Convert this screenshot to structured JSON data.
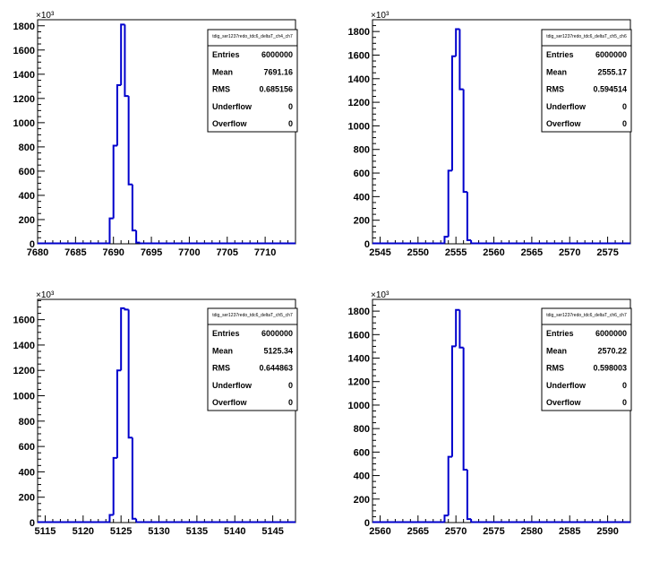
{
  "chart_data": [
    {
      "type": "histogram",
      "name": "tdig_ser1237redo_tdc6_deltaT_ch4_ch7",
      "stats": {
        "entries": "6000000",
        "mean": "7691.16",
        "rms": "0.685156",
        "underflow": "0",
        "overflow": "0"
      },
      "xlim": [
        7680,
        7714
      ],
      "ylim": [
        0,
        1850
      ],
      "x_ticks": [
        7680,
        7685,
        7690,
        7695,
        7700,
        7705,
        7710
      ],
      "y_ticks": [
        0,
        200,
        400,
        600,
        800,
        1000,
        1200,
        1400,
        1600,
        1800
      ],
      "y_multiplier": "×10³",
      "bin_width": 0.5,
      "bins": [
        {
          "x0": 7689.5,
          "x1": 7690.0,
          "y": 210
        },
        {
          "x0": 7690.0,
          "x1": 7690.5,
          "y": 810
        },
        {
          "x0": 7690.5,
          "x1": 7691.0,
          "y": 1310
        },
        {
          "x0": 7691.0,
          "x1": 7691.5,
          "y": 1810
        },
        {
          "x0": 7691.5,
          "x1": 7692.0,
          "y": 1220
        },
        {
          "x0": 7692.0,
          "x1": 7692.5,
          "y": 490
        },
        {
          "x0": 7692.5,
          "x1": 7693.0,
          "y": 110
        },
        {
          "x0": 7693.0,
          "x1": 7693.5,
          "y": 10
        }
      ]
    },
    {
      "type": "histogram",
      "name": "tdig_ser1237redo_tdc6_deltaT_ch5_ch6",
      "stats": {
        "entries": "6000000",
        "mean": "2555.17",
        "rms": "0.594514",
        "underflow": "0",
        "overflow": "0"
      },
      "xlim": [
        2544,
        2578
      ],
      "ylim": [
        0,
        1900
      ],
      "x_ticks": [
        2545,
        2550,
        2555,
        2560,
        2565,
        2570,
        2575
      ],
      "y_ticks": [
        0,
        200,
        400,
        600,
        800,
        1000,
        1200,
        1400,
        1600,
        1800
      ],
      "y_multiplier": "×10³",
      "bin_width": 0.5,
      "bins": [
        {
          "x0": 2553.5,
          "x1": 2554.0,
          "y": 60
        },
        {
          "x0": 2554.0,
          "x1": 2554.5,
          "y": 620
        },
        {
          "x0": 2554.5,
          "x1": 2555.0,
          "y": 1590
        },
        {
          "x0": 2555.0,
          "x1": 2555.5,
          "y": 1820
        },
        {
          "x0": 2555.5,
          "x1": 2556.0,
          "y": 1310
        },
        {
          "x0": 2556.0,
          "x1": 2556.5,
          "y": 440
        },
        {
          "x0": 2556.5,
          "x1": 2557.0,
          "y": 30
        }
      ]
    },
    {
      "type": "histogram",
      "name": "tdig_ser1237redo_tdc6_deltaT_ch5_ch7",
      "stats": {
        "entries": "6000000",
        "mean": "5125.34",
        "rms": "0.644863",
        "underflow": "0",
        "overflow": "0"
      },
      "xlim": [
        5114,
        5148
      ],
      "ylim": [
        0,
        1760
      ],
      "x_ticks": [
        5115,
        5120,
        5125,
        5130,
        5135,
        5140,
        5145
      ],
      "y_ticks": [
        0,
        200,
        400,
        600,
        800,
        1000,
        1200,
        1400,
        1600
      ],
      "y_multiplier": "×10³",
      "bin_width": 0.5,
      "bins": [
        {
          "x0": 5123.5,
          "x1": 5124.0,
          "y": 60
        },
        {
          "x0": 5124.0,
          "x1": 5124.5,
          "y": 510
        },
        {
          "x0": 5124.5,
          "x1": 5125.0,
          "y": 1200
        },
        {
          "x0": 5125.0,
          "x1": 5125.5,
          "y": 1690
        },
        {
          "x0": 5125.5,
          "x1": 5126.0,
          "y": 1680
        },
        {
          "x0": 5126.0,
          "x1": 5126.5,
          "y": 670
        },
        {
          "x0": 5126.5,
          "x1": 5127.0,
          "y": 30
        }
      ]
    },
    {
      "type": "histogram",
      "name": "tdig_ser1237redo_tdc6_deltaT_ch6_ch7",
      "stats": {
        "entries": "6000000",
        "mean": "2570.22",
        "rms": "0.598003",
        "underflow": "0",
        "overflow": "0"
      },
      "xlim": [
        2559,
        2593
      ],
      "ylim": [
        0,
        1900
      ],
      "x_ticks": [
        2560,
        2565,
        2570,
        2575,
        2580,
        2585,
        2590
      ],
      "y_ticks": [
        0,
        200,
        400,
        600,
        800,
        1000,
        1200,
        1400,
        1600,
        1800
      ],
      "y_multiplier": "×10³",
      "bin_width": 0.5,
      "bins": [
        {
          "x0": 2568.5,
          "x1": 2569.0,
          "y": 60
        },
        {
          "x0": 2569.0,
          "x1": 2569.5,
          "y": 560
        },
        {
          "x0": 2569.5,
          "x1": 2570.0,
          "y": 1500
        },
        {
          "x0": 2570.0,
          "x1": 2570.5,
          "y": 1810
        },
        {
          "x0": 2570.5,
          "x1": 2571.0,
          "y": 1490
        },
        {
          "x0": 2571.0,
          "x1": 2571.5,
          "y": 450
        },
        {
          "x0": 2571.5,
          "x1": 2572.0,
          "y": 30
        }
      ]
    }
  ],
  "stat_labels": {
    "entries": "Entries",
    "mean": "Mean",
    "rms": "RMS",
    "underflow": "Underflow",
    "overflow": "Overflow"
  },
  "colors": {
    "histogram_line": "#0000cc",
    "frame": "#000000",
    "background": "#ffffff"
  }
}
